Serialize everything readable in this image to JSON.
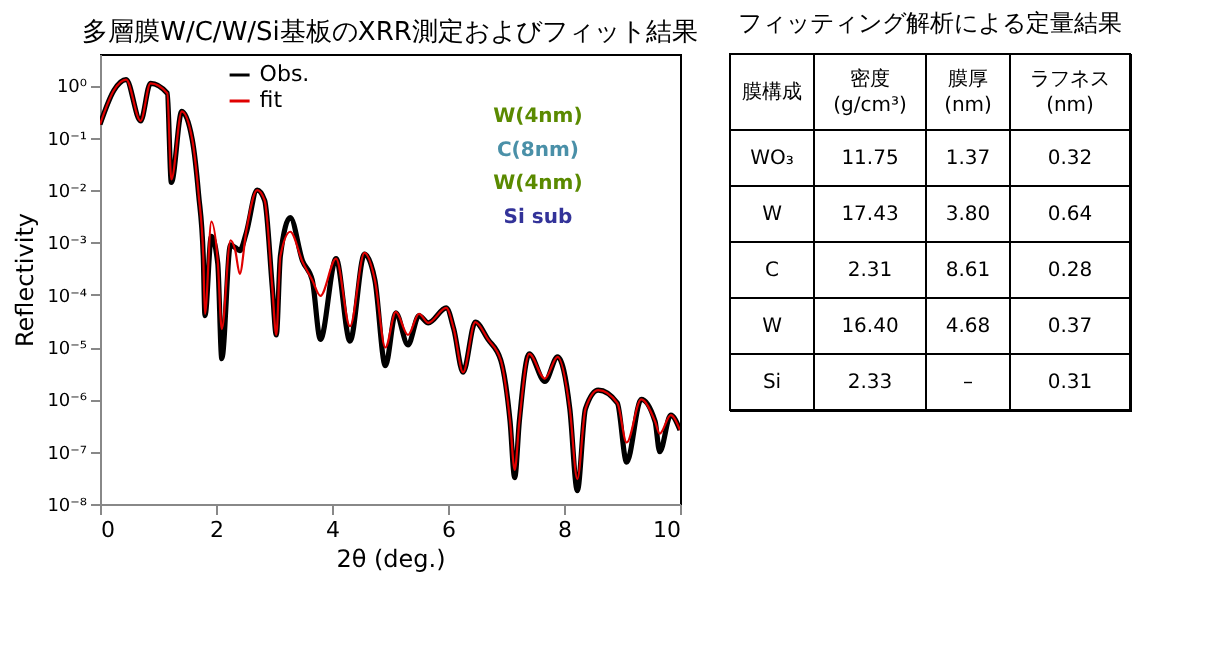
{
  "chart_data": [
    {
      "type": "line",
      "title": "多層膜W/C/W/Si基板のXRR測定およびフィット結果",
      "xlabel": "2θ (deg.)",
      "ylabel": "Reflectivity",
      "log": "y",
      "xlim": [
        0,
        10
      ],
      "xticks": [
        0,
        2,
        4,
        6,
        8,
        10
      ],
      "ylim": [
        1e-08,
        4
      ],
      "yticks": [
        {
          "value": 1e-08,
          "label": "10⁻⁸"
        },
        {
          "value": 1e-07,
          "label": "10⁻⁷"
        },
        {
          "value": 1e-06,
          "label": "10⁻⁶"
        },
        {
          "value": 1e-05,
          "label": "10⁻⁵"
        },
        {
          "value": 0.0001,
          "label": "10⁻⁴"
        },
        {
          "value": 0.001,
          "label": "10⁻³"
        },
        {
          "value": 0.01,
          "label": "10⁻²"
        },
        {
          "value": 0.1,
          "label": "10⁻¹"
        },
        {
          "value": 1,
          "label": "10⁰"
        }
      ],
      "legend": "top left",
      "grid": false,
      "annotations": [
        "W(4nm)",
        "C(8nm)",
        "W(4nm)",
        "Si sub"
      ],
      "x": [
        0,
        0.24,
        0.45,
        0.7,
        0.87,
        1.16,
        1.23,
        1.41,
        1.59,
        1.7,
        1.78,
        1.81,
        1.92,
        2.03,
        2.1,
        2.25,
        2.33,
        2.41,
        2.52,
        2.71,
        2.84,
        2.97,
        3.04,
        3.11,
        3.28,
        3.49,
        3.66,
        3.8,
        4.07,
        4.31,
        4.56,
        4.74,
        4.92,
        5.1,
        5.31,
        5.5,
        5.66,
        5.97,
        6.1,
        6.26,
        6.47,
        6.69,
        6.91,
        7.07,
        7.15,
        7.23,
        7.4,
        7.67,
        7.89,
        8.1,
        8.23,
        8.37,
        8.59,
        8.92,
        9.08,
        9.33,
        9.57,
        9.65,
        9.84,
        10
      ],
      "series": [
        {
          "name": "Obs.",
          "color": "#000000",
          "values": [
            0.18,
            0.81,
            1.3,
            0.21,
            1.1,
            0.71,
            0.014,
            0.32,
            0.093,
            0.0083,
            0.00055,
            4e-05,
            0.0013,
            0.0004,
            6e-06,
            0.0009,
            0.0008,
            0.0007,
            0.0015,
            0.01,
            0.0063,
            0.00014,
            1.7e-05,
            0.00055,
            0.003,
            0.00045,
            0.00019,
            1.4e-05,
            0.00049,
            1.3e-05,
            0.0006,
            0.00019,
            4.4e-06,
            4.5e-05,
            1.1e-05,
            4e-05,
            2.9e-05,
            5.6e-05,
            2.2e-05,
            3.3e-06,
            3e-05,
            1.4e-05,
            5.6e-06,
            3.8e-07,
            3.2e-08,
            3.8e-07,
            7.4e-06,
            2.2e-06,
            6.5e-06,
            6.6e-07,
            1.8e-08,
            6.6e-07,
            1.5e-06,
            8.5e-07,
            6.3e-08,
            1e-06,
            3.8e-07,
            1e-07,
            5e-07,
            2.6e-07
          ]
        },
        {
          "name": "fit",
          "color": "#e00000",
          "values": [
            0.18,
            0.81,
            1.3,
            0.21,
            1.1,
            0.71,
            0.016,
            0.32,
            0.093,
            0.0083,
            0.00055,
            4.3e-05,
            0.0025,
            0.00043,
            2.2e-05,
            0.0011,
            0.00072,
            0.00025,
            0.0016,
            0.01,
            0.0063,
            0.00014,
            1.7e-05,
            0.00055,
            0.0016,
            0.00043,
            0.00019,
            9.5e-05,
            0.00049,
            2.5e-05,
            0.00063,
            0.00019,
            9.8e-06,
            4.7e-05,
            1.7e-05,
            4.3e-05,
            2.9e-05,
            5.6e-05,
            2.2e-05,
            3.3e-06,
            3e-05,
            1.4e-05,
            5.6e-06,
            3.8e-07,
            4.5e-08,
            3.8e-07,
            7.4e-06,
            2.5e-06,
            6.5e-06,
            6.6e-07,
            3e-08,
            6.6e-07,
            1.5e-06,
            8.5e-07,
            1.5e-07,
            1e-06,
            3.8e-07,
            2.2e-07,
            5e-07,
            2.6e-07
          ]
        }
      ]
    },
    {
      "type": "other",
      "title": "フィッティング解析による定量結果",
      "ylabel": "膜構成",
      "categories": [
        "密度 (g/cm³)",
        "膜厚 (nm)",
        "ラフネス (nm)"
      ],
      "y_categories": [
        "WO₃",
        "W",
        "C",
        "W",
        "Si"
      ],
      "cell_labels": [
        [
          "11.75",
          "1.37",
          "0.32"
        ],
        [
          "17.43",
          "3.80",
          "0.64"
        ],
        [
          "2.31",
          "8.61",
          "0.28"
        ],
        [
          "16.40",
          "4.68",
          "0.37"
        ],
        [
          "2.33",
          "–",
          "0.31"
        ]
      ]
    }
  ]
}
